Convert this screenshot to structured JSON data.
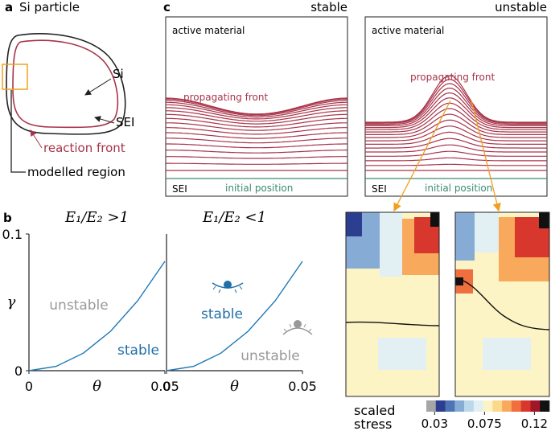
{
  "panel_a": {
    "letter": "a",
    "title": "Si particle",
    "si": "Si",
    "sei": "SEI",
    "reaction_front": "reaction front",
    "modelled_region": "modelled region"
  },
  "panel_b": {
    "letter": "b",
    "annotations": [
      "unstable",
      "stable",
      "stable",
      "unstable"
    ]
  },
  "panel_c": {
    "letter": "c",
    "left_title": "stable",
    "right_title": "unstable",
    "left": {
      "active": "active material",
      "front": "propagating front",
      "sei": "SEI",
      "initial": "initial position"
    },
    "right": {
      "active": "active material",
      "front": "propagating front",
      "sei": "SEI",
      "initial": "initial position"
    }
  },
  "colorbar": {
    "label": [
      "scaled",
      "stress"
    ],
    "colors": [
      "#a6a6a6",
      "#2c3e8f",
      "#4f74b4",
      "#86acd6",
      "#bcd9ec",
      "#e2f0f4",
      "#fdf4c6",
      "#fcd88a",
      "#f8a95c",
      "#ef6f3f",
      "#d7372c",
      "#a31628",
      "#111111"
    ],
    "lim": [
      0.0225,
      0.1335
    ],
    "ticks": [
      0.03,
      0.075,
      0.12
    ]
  },
  "chart_data": [
    {
      "type": "line",
      "title": "E₁/E₂ >1",
      "xlabel": "θ",
      "ylabel": "γ",
      "x": [
        0,
        0.01,
        0.02,
        0.03,
        0.04,
        0.05
      ],
      "series": [
        {
          "color": "#1f77b4",
          "values": [
            0,
            0.0032,
            0.0128,
            0.0288,
            0.0512,
            0.08
          ]
        }
      ],
      "xlim": [
        0,
        0.05
      ],
      "ylim": [
        0,
        0.1
      ],
      "xticks": [
        0,
        0.05
      ],
      "yticks": [
        0,
        0.1
      ]
    },
    {
      "type": "line",
      "title": "E₁/E₂ <1",
      "xlabel": "θ",
      "x": [
        0,
        0.01,
        0.02,
        0.03,
        0.04,
        0.05
      ],
      "series": [
        {
          "color": "#1f77b4",
          "values": [
            0,
            0.0032,
            0.0128,
            0.0288,
            0.0512,
            0.08
          ]
        }
      ],
      "xlim": [
        0,
        0.05
      ],
      "ylim": [
        0,
        0.1
      ],
      "xticks": [
        0,
        0.05
      ]
    }
  ]
}
